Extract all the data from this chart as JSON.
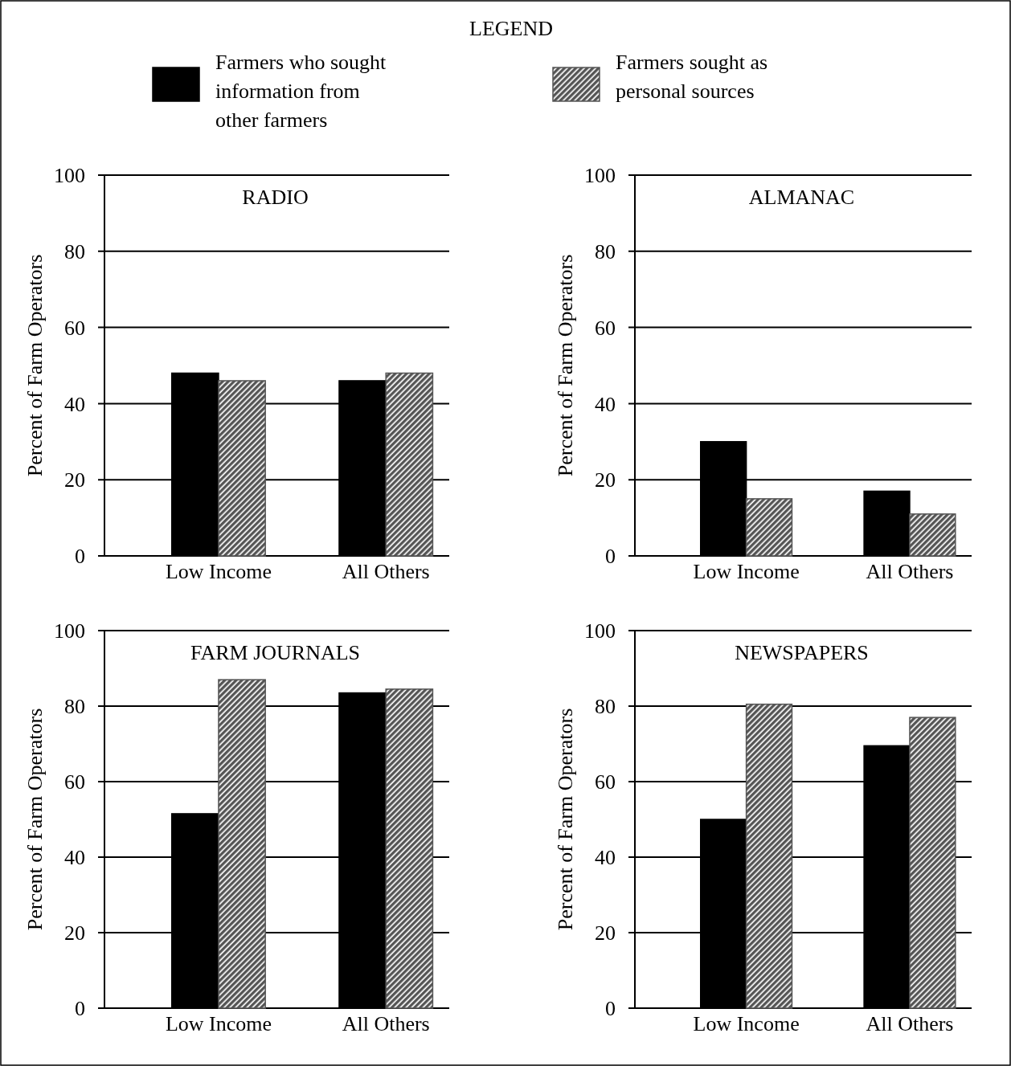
{
  "chart_data": [
    {
      "type": "bar",
      "title": "RADIO",
      "legend_title": "LEGEND",
      "legend": "top",
      "categories": [
        "Low Income",
        "All Others"
      ],
      "ylabel": "Percent of Farm Operators",
      "ylim": [
        0,
        100
      ],
      "yticks": [
        0,
        20,
        40,
        60,
        80,
        100
      ],
      "grid": "y",
      "series": [
        {
          "name": "Farmers who sought information from other farmers",
          "color": "#000000",
          "values": [
            48,
            46
          ]
        },
        {
          "name": "Farmers sought as personal sources",
          "color": "#555555",
          "values": [
            46,
            48
          ]
        }
      ]
    },
    {
      "type": "bar",
      "title": "ALMANAC",
      "categories": [
        "Low Income",
        "All Others"
      ],
      "ylabel": "Percent of Farm Operators",
      "ylim": [
        0,
        100
      ],
      "yticks": [
        0,
        20,
        40,
        60,
        80,
        100
      ],
      "grid": "y",
      "series": [
        {
          "color": "#000000",
          "values": [
            30,
            17
          ]
        },
        {
          "color": "#555555",
          "values": [
            15,
            11
          ]
        }
      ]
    },
    {
      "type": "bar",
      "title": "FARM JOURNALS",
      "categories": [
        "Low Income",
        "All Others"
      ],
      "ylabel": "Percent of Farm Operators",
      "ylim": [
        0,
        100
      ],
      "yticks": [
        0,
        20,
        40,
        60,
        80,
        100
      ],
      "grid": "y",
      "series": [
        {
          "color": "#000000",
          "values": [
            51.5,
            83.5
          ]
        },
        {
          "color": "#555555",
          "values": [
            87,
            84.5
          ]
        }
      ]
    },
    {
      "type": "bar",
      "title": "NEWSPAPERS",
      "categories": [
        "Low Income",
        "All Others"
      ],
      "ylabel": "Percent of Farm Operators",
      "ylim": [
        0,
        100
      ],
      "yticks": [
        0,
        20,
        40,
        60,
        80,
        100
      ],
      "grid": "y",
      "series": [
        {
          "color": "#000000",
          "values": [
            50,
            69.5
          ]
        },
        {
          "color": "#555555",
          "values": [
            80.5,
            77
          ]
        }
      ]
    }
  ]
}
